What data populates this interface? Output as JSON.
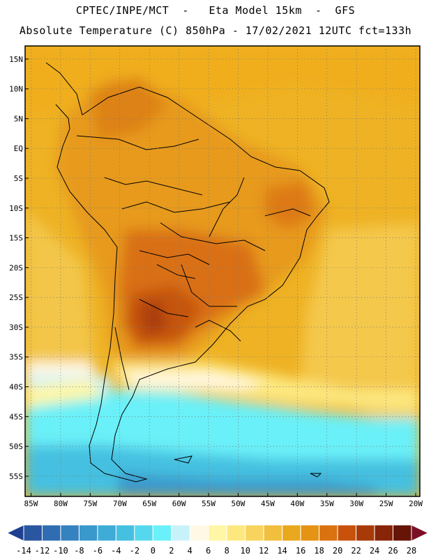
{
  "header": {
    "line1": "CPTEC/INPE/MCT  -   Eta Model 15km  -  GFS",
    "line2": "Absolute Temperature (C) 850hPa - 17/02/2021 12UTC fct=133h"
  },
  "map": {
    "lat_labels": [
      "15N",
      "10N",
      "5N",
      "EQ",
      "5S",
      "10S",
      "15S",
      "20S",
      "25S",
      "30S",
      "35S",
      "40S",
      "45S",
      "50S",
      "55S"
    ],
    "lon_labels": [
      "85W",
      "80W",
      "75W",
      "70W",
      "65W",
      "60W",
      "55W",
      "50W",
      "45W",
      "40W",
      "35W",
      "30W",
      "25W",
      "20W"
    ],
    "lat_values": [
      15,
      10,
      5,
      0,
      -5,
      -10,
      -15,
      -20,
      -25,
      -30,
      -35,
      -40,
      -45,
      -50,
      -55
    ],
    "lon_values": [
      -85,
      -80,
      -75,
      -70,
      -65,
      -60,
      -55,
      -50,
      -45,
      -40,
      -35,
      -30,
      -25,
      -20
    ]
  },
  "legend": {
    "labels": [
      "-14",
      "-12",
      "-10",
      "-8",
      "-6",
      "-4",
      "-2",
      "0",
      "2",
      "4",
      "6",
      "8",
      "10",
      "12",
      "14",
      "16",
      "18",
      "20",
      "22",
      "24",
      "26",
      "28"
    ],
    "colors": [
      "#1f3f8f",
      "#2a55a0",
      "#2f6cb2",
      "#3582c0",
      "#3a98cc",
      "#3eacd6",
      "#45c0e0",
      "#55d8ee",
      "#6af0f8",
      "#c8f2fa",
      "#fff8e4",
      "#fff6a6",
      "#fde880",
      "#f8d45e",
      "#f0bf3e",
      "#eaa81e",
      "#e59314",
      "#da7210",
      "#c8520c",
      "#a83a08",
      "#882408",
      "#661408",
      "#7a0f25"
    ]
  }
}
